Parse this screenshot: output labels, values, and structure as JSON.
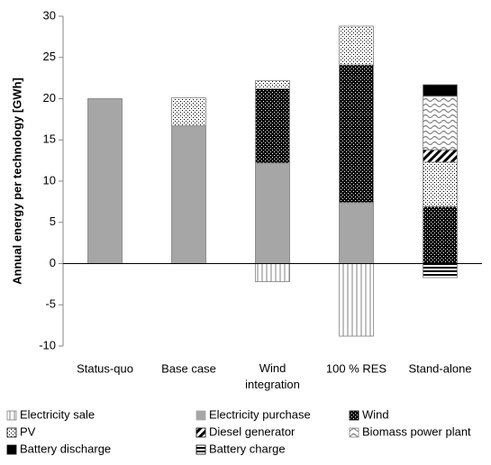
{
  "chart_data": {
    "type": "bar",
    "stacked": true,
    "ylabel": "Annual energy per technology [GWh]",
    "categories": [
      "Status-quo",
      "Base case",
      "Wind integration",
      "100 % RES",
      "Stand-alone"
    ],
    "series": [
      {
        "name": "Electricity sale",
        "color": "#808080",
        "values": [
          0,
          0,
          -2.2,
          -8.8,
          0
        ]
      },
      {
        "name": "Electricity purchase",
        "color": "#a6a6a6",
        "values": [
          20,
          16.7,
          12.2,
          7.4,
          0
        ]
      },
      {
        "name": "Wind",
        "color": "#000000",
        "values": [
          0,
          0,
          9.0,
          16.7,
          6.9
        ]
      },
      {
        "name": "PV",
        "color": "#000000",
        "values": [
          0,
          3.4,
          1.0,
          4.7,
          5.4
        ]
      },
      {
        "name": "Diesel generator",
        "color": "#000000",
        "values": [
          0,
          0,
          0,
          0,
          1.5
        ]
      },
      {
        "name": "Biomass power plant",
        "color": "#808080",
        "values": [
          0,
          0,
          0,
          0,
          6.5
        ]
      },
      {
        "name": "Battery discharge",
        "color": "#000000",
        "values": [
          0,
          0,
          0,
          0,
          1.4
        ]
      },
      {
        "name": "Battery charge",
        "color": "#000000",
        "values": [
          0,
          0,
          0,
          0,
          -1.7
        ]
      }
    ],
    "ylim": [
      -10,
      30
    ],
    "yticks": [
      -10,
      -5,
      0,
      5,
      10,
      15,
      20,
      25,
      30
    ],
    "grid": false,
    "legend": "bottom"
  }
}
